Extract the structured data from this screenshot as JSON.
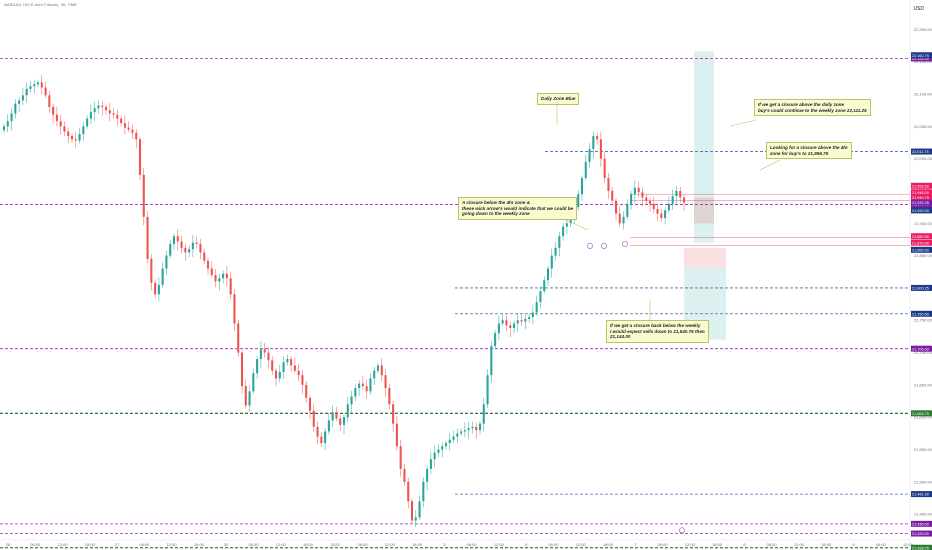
{
  "header": {
    "symbol_line": "NASDAQ 100 E-mini Futures, 30, CME",
    "currency": "USD"
  },
  "colors": {
    "up": "#26a69a",
    "down": "#ef5350",
    "purple_dash": "#9c27b0",
    "blue_dash": "#3c6fb5",
    "green_dash": "#1b5e20",
    "pink_line": "#e91e63",
    "label_blue": "#1e3a8a",
    "label_purple": "#7b1fa2",
    "label_pink": "#e91e63",
    "label_green": "#2e7d32",
    "note_bg": "#fbfbd0"
  },
  "annotations": {
    "daily_zone": [
      "Daily Zone Blue"
    ],
    "weekly_continue": [
      "If we get a closure above the daily zone",
      "buy's could continue to the weekly zone 22,111.25"
    ],
    "four_hr": [
      "Looking for a closure above the 4hr",
      "zone for buy's to 21,896.75"
    ],
    "closure_below": [
      "A closure below the 4hr zone &",
      "these wick arrow's would indicate that we could be",
      "going down to the weekly zone"
    ],
    "weekly_sells": [
      "If we get a closure back below the weekly",
      "I would expect sells down to 21,540.75 then",
      "21,144.00"
    ]
  },
  "chart_data": {
    "type": "candlestick",
    "ylim": [
      21410,
      22230
    ],
    "price_ticks": [
      "22,200.00",
      "22,150.00",
      "22,100.00",
      "22,050.00",
      "22,000.00",
      "21,950.00",
      "21,900.00",
      "21,850.00",
      "21,800.00",
      "21,750.00",
      "21,700.00",
      "21,650.00",
      "21,600.00",
      "21,550.00",
      "21,500.00",
      "21,450.00"
    ],
    "time_ticks": [
      "26",
      "06:00",
      "12:00",
      "18:00",
      "27",
      "06:00",
      "12:00",
      "18:00",
      "30",
      "06:00",
      "12:00",
      "18:00",
      "2025",
      "06:00",
      "12:00",
      "18:00",
      "3",
      "06:00",
      "12:00",
      "6",
      "06:00",
      "12:00",
      "18:00",
      "7",
      "06:00",
      "12:00",
      "18:00",
      "8",
      "06:00",
      "12:00",
      "18:00",
      "9",
      "06:00",
      "12:00"
    ],
    "closes": [
      22050,
      22058,
      22070,
      22085,
      22090,
      22098,
      22108,
      22112,
      22115,
      22118,
      22110,
      22098,
      22080,
      22068,
      22058,
      22050,
      22042,
      22035,
      22030,
      22028,
      22038,
      22050,
      22062,
      22072,
      22078,
      22082,
      22080,
      22075,
      22070,
      22068,
      22062,
      22055,
      22048,
      22045,
      22040,
      22030,
      21975,
      21910,
      21845,
      21808,
      21790,
      21805,
      21830,
      21850,
      21868,
      21880,
      21872,
      21862,
      21855,
      21860,
      21870,
      21868,
      21855,
      21842,
      21830,
      21820,
      21810,
      21815,
      21822,
      21815,
      21790,
      21745,
      21700,
      21648,
      21618,
      21640,
      21668,
      21690,
      21705,
      21700,
      21688,
      21672,
      21660,
      21670,
      21685,
      21690,
      21680,
      21672,
      21665,
      21650,
      21630,
      21610,
      21585,
      21570,
      21560,
      21578,
      21595,
      21608,
      21598,
      21588,
      21600,
      21620,
      21632,
      21645,
      21652,
      21648,
      21640,
      21660,
      21672,
      21680,
      21665,
      21645,
      21620,
      21590,
      21555,
      21520,
      21500,
      21470,
      21440,
      21445,
      21470,
      21500,
      21520,
      21535,
      21545,
      21550,
      21555,
      21560,
      21565,
      21570,
      21575,
      21578,
      21580,
      21583,
      21585,
      21580,
      21590,
      21620,
      21665,
      21710,
      21730,
      21745,
      21750,
      21742,
      21738,
      21745,
      21750,
      21748,
      21752,
      21755,
      21762,
      21778,
      21795,
      21812,
      21830,
      21850,
      21862,
      21880,
      21895,
      21900,
      21910,
      21925,
      21945,
      21970,
      21995,
      22015,
      22035,
      22030,
      22000,
      21970,
      21950,
      21935,
      21915,
      21900,
      21910,
      21930,
      21945,
      21955,
      21948,
      21940,
      21935,
      21930,
      21922,
      21915,
      21908,
      21920,
      21930,
      21942,
      21950,
      21940,
      21932
    ],
    "levels": [
      {
        "price": 22155,
        "label": "22,155.00",
        "style": "purple"
      },
      {
        "price": 22011,
        "label": "22,011.75",
        "style": "blue"
      },
      {
        "price": 21929,
        "label": "21,929.75",
        "style": "purple"
      },
      {
        "price": 21800,
        "label": "21,800.25",
        "style": "blue"
      },
      {
        "price": 21760,
        "label": "21,760.50",
        "style": "blue"
      },
      {
        "price": 21706,
        "label": "21,706.00",
        "style": "purple"
      },
      {
        "price": 21606,
        "label": "21,606.75",
        "style": "green"
      },
      {
        "price": 21481,
        "label": "21,481.00",
        "style": "blue"
      },
      {
        "price": 21435,
        "label": "21,435.00",
        "style": "purple"
      },
      {
        "price": 21420,
        "label": "21,420.50",
        "style": "purple"
      },
      {
        "price": 21398,
        "label": "21,398.25",
        "style": "green"
      }
    ],
    "side_labels": [
      {
        "price": 22160,
        "label": "22,160.75",
        "color": "blue"
      },
      {
        "price": 21958,
        "label": "21,958.50",
        "color": "pink"
      },
      {
        "price": 21948,
        "label": "21,948.00",
        "color": "pink"
      },
      {
        "price": 21940,
        "label": "21,940.75",
        "color": "pink"
      },
      {
        "price": 21932,
        "label": "21,932.25",
        "color": "purple"
      },
      {
        "price": 21920,
        "label": "21,920.00",
        "color": "blue"
      },
      {
        "price": 21880,
        "label": "21,880.50",
        "color": "pink"
      },
      {
        "price": 21870,
        "label": "21,870.00",
        "color": "pink"
      },
      {
        "price": 21859,
        "label": "21,859.00",
        "color": "blue"
      }
    ]
  }
}
